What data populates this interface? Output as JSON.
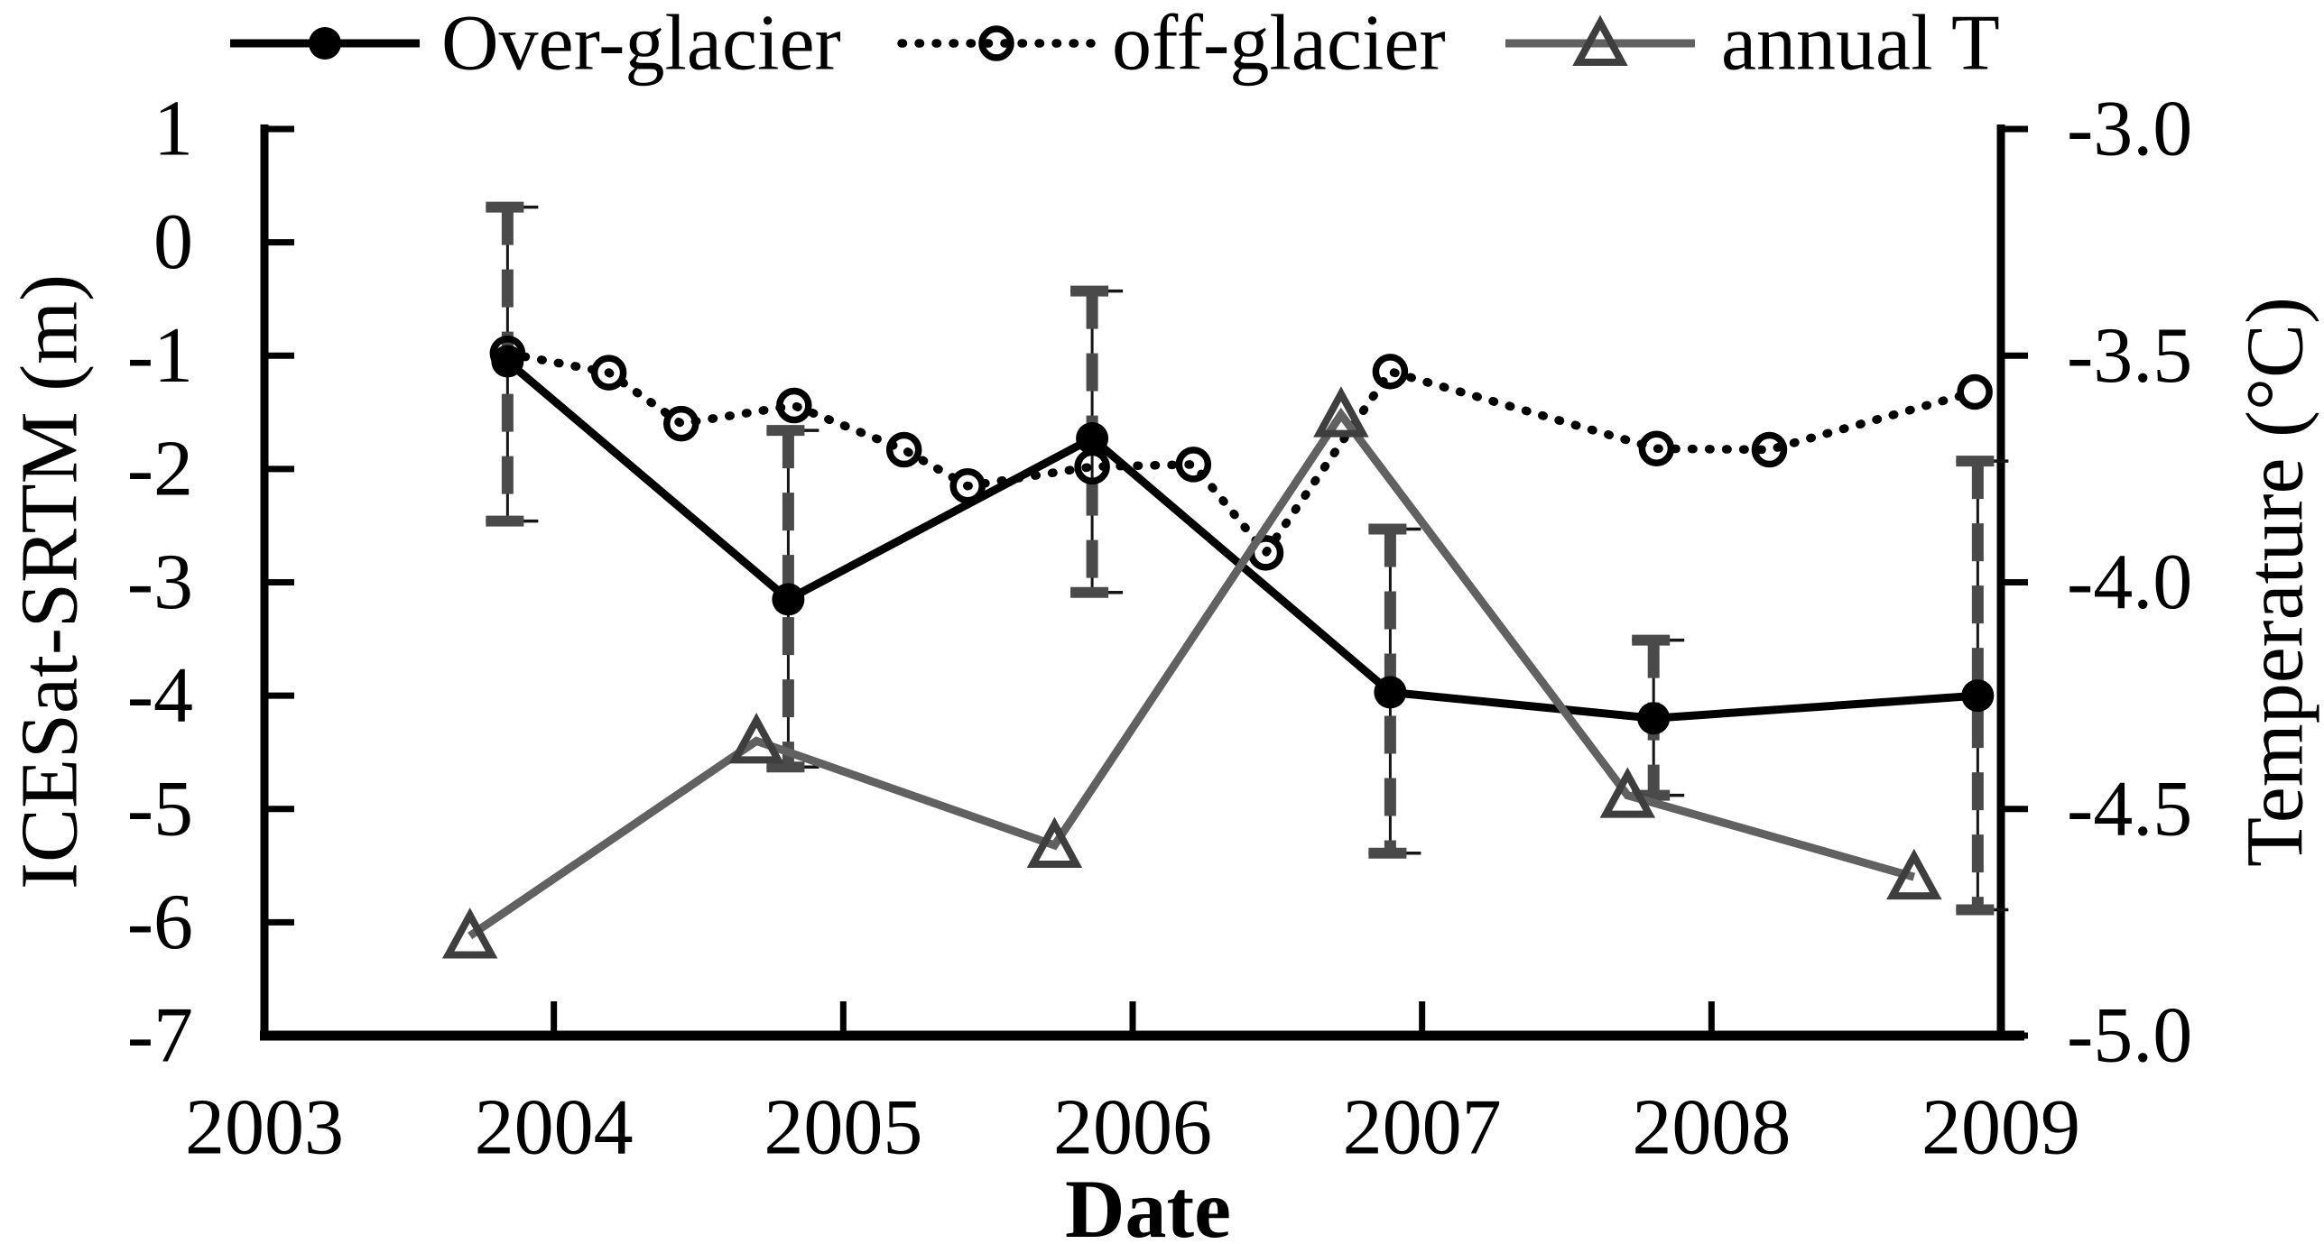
{
  "figure_title": "",
  "chart_data": {
    "type": "line",
    "title": "",
    "xlabel": "Date",
    "ylabel_left": "ICESat-SRTM (m)",
    "ylabel_right": "Temperature (°C)",
    "grid": false,
    "legend_position": "top",
    "x_axis": {
      "range": [
        2003,
        2009
      ],
      "tick_values": [
        2003,
        2004,
        2005,
        2006,
        2007,
        2008,
        2009
      ],
      "tick_labels": [
        "2003",
        "2004",
        "2005",
        "2006",
        "2007",
        "2008",
        "2009"
      ]
    },
    "y_left": {
      "range": [
        -7,
        1
      ],
      "tick_values": [
        1,
        0,
        -1,
        -2,
        -3,
        -4,
        -5,
        -6,
        -7
      ],
      "tick_labels": [
        "1",
        "0",
        "-1",
        "-2",
        "-3",
        "-4",
        "-5",
        "-6",
        "-7"
      ]
    },
    "y_right": {
      "range": [
        -5.0,
        -3.0
      ],
      "tick_values": [
        -3.0,
        -3.5,
        -4.0,
        -4.5,
        -5.0
      ],
      "tick_labels": [
        "-3.0",
        "-3.5",
        "-4.0",
        "-4.5",
        "-5.0"
      ]
    },
    "series": [
      {
        "name": "Over-glacier",
        "axis": "left",
        "line": "solid",
        "marker": "filled-circle",
        "color": "#000000",
        "marker_color": "#000000",
        "points": [
          {
            "x": 2003.84,
            "y": -1.05,
            "err_hi": 0.31,
            "err_lo": -2.46
          },
          {
            "x": 2004.81,
            "y": -3.15,
            "err_hi": -1.66,
            "err_lo": -4.63
          },
          {
            "x": 2005.86,
            "y": -1.73,
            "err_hi": -0.43,
            "err_lo": -3.09
          },
          {
            "x": 2006.89,
            "y": -3.97,
            "err_hi": -2.53,
            "err_lo": -5.39
          },
          {
            "x": 2007.8,
            "y": -4.2,
            "err_hi": -3.51,
            "err_lo": -4.88
          },
          {
            "x": 2008.92,
            "y": -4.0,
            "err_hi": -1.93,
            "err_lo": -5.89
          }
        ]
      },
      {
        "name": "off-glacier",
        "axis": "left",
        "line": "dotted",
        "marker": "open-circle",
        "color": "#000000",
        "marker_color": "#000000",
        "points": [
          {
            "x": 2003.84,
            "y": -0.98
          },
          {
            "x": 2004.19,
            "y": -1.15
          },
          {
            "x": 2004.44,
            "y": -1.6
          },
          {
            "x": 2004.83,
            "y": -1.44
          },
          {
            "x": 2005.21,
            "y": -1.83
          },
          {
            "x": 2005.43,
            "y": -2.15
          },
          {
            "x": 2005.86,
            "y": -1.98
          },
          {
            "x": 2006.21,
            "y": -1.96
          },
          {
            "x": 2006.46,
            "y": -2.74
          },
          {
            "x": 2006.89,
            "y": -1.14
          },
          {
            "x": 2007.81,
            "y": -1.82
          },
          {
            "x": 2008.2,
            "y": -1.83
          },
          {
            "x": 2008.91,
            "y": -1.32
          }
        ]
      },
      {
        "name": "annual T",
        "axis": "right",
        "line": "solid",
        "marker": "open-triangle",
        "color": "#616161",
        "marker_color": "#3e3e3e",
        "points": [
          {
            "x": 2003.71,
            "y": -4.78
          },
          {
            "x": 2004.7,
            "y": -4.35
          },
          {
            "x": 2005.73,
            "y": -4.58
          },
          {
            "x": 2006.72,
            "y": -3.63
          },
          {
            "x": 2007.71,
            "y": -4.47
          },
          {
            "x": 2008.7,
            "y": -4.65
          }
        ]
      }
    ]
  }
}
